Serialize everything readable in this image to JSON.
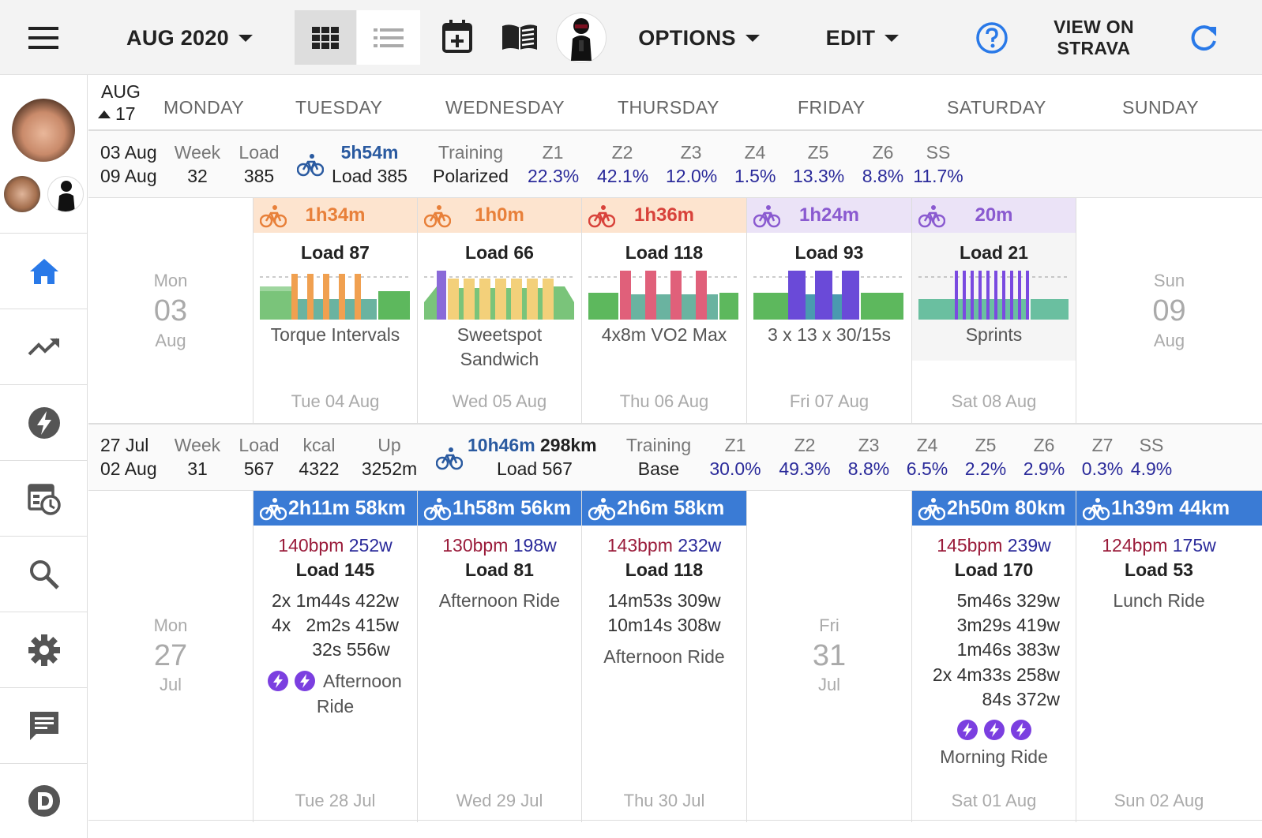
{
  "toolbar": {
    "month": "AUG 2020",
    "options": "OPTIONS",
    "edit": "EDIT",
    "view_on_line1": "VIEW ON",
    "view_on_line2": "STRAVA"
  },
  "header": {
    "month": "AUG",
    "day": "17",
    "days": [
      "MONDAY",
      "TUESDAY",
      "WEDNESDAY",
      "THURSDAY",
      "FRIDAY",
      "SATURDAY",
      "SUNDAY"
    ]
  },
  "week1": {
    "start": "03 Aug",
    "end": "09 Aug",
    "week_label": "Week",
    "week": "32",
    "load_label": "Load",
    "load": "385",
    "duration": "5h54m",
    "total_load": "Load 385",
    "training_label": "Training",
    "training": "Polarized",
    "zones": [
      {
        "name": "Z1",
        "value": "22.3%"
      },
      {
        "name": "Z2",
        "value": "42.1%"
      },
      {
        "name": "Z3",
        "value": "12.0%"
      },
      {
        "name": "Z4",
        "value": "1.5%"
      },
      {
        "name": "Z5",
        "value": "13.3%"
      },
      {
        "name": "Z6",
        "value": "8.8%"
      },
      {
        "name": "SS",
        "value": "11.7%"
      }
    ],
    "mon": {
      "dow": "Mon",
      "num": "03",
      "mon": "Aug"
    },
    "sun": {
      "dow": "Sun",
      "num": "09",
      "mon": "Aug"
    },
    "plans": [
      {
        "duration": "1h34m",
        "load": "Load 87",
        "name1": "Torque Intervals",
        "name2": "",
        "date": "Tue 04 Aug"
      },
      {
        "duration": "1h0m",
        "load": "Load 66",
        "name1": "Sweetspot",
        "name2": "Sandwich",
        "date": "Wed 05 Aug"
      },
      {
        "duration": "1h36m",
        "load": "Load 118",
        "name1": "4x8m VO2 Max",
        "name2": "",
        "date": "Thu 06 Aug"
      },
      {
        "duration": "1h24m",
        "load": "Load 93",
        "name1": "3 x 13 x 30/15s",
        "name2": "",
        "date": "Fri 07 Aug"
      },
      {
        "duration": "20m",
        "load": "Load 21",
        "name1": "Sprints",
        "name2": "",
        "date": "Sat 08 Aug"
      }
    ]
  },
  "week2": {
    "start": "27 Jul",
    "end": "02 Aug",
    "week_label": "Week",
    "week": "31",
    "load_label": "Load",
    "load": "567",
    "kcal_label": "kcal",
    "kcal": "4322",
    "up_label": "Up",
    "up": "3252m",
    "duration": "10h46m",
    "distance": "298km",
    "total_load": "Load 567",
    "training_label": "Training",
    "training": "Base",
    "zones": [
      {
        "name": "Z1",
        "value": "30.0%"
      },
      {
        "name": "Z2",
        "value": "49.3%"
      },
      {
        "name": "Z3",
        "value": "8.8%"
      },
      {
        "name": "Z4",
        "value": "6.5%"
      },
      {
        "name": "Z5",
        "value": "2.2%"
      },
      {
        "name": "Z6",
        "value": "2.9%"
      },
      {
        "name": "Z7",
        "value": "0.3%"
      },
      {
        "name": "SS",
        "value": "4.9%"
      }
    ],
    "mon": {
      "dow": "Mon",
      "num": "27",
      "mon": "Jul"
    },
    "fri": {
      "dow": "Fri",
      "num": "31",
      "mon": "Jul"
    },
    "acts": {
      "tue": {
        "title": "2h11m 58km",
        "bpm": "140bpm",
        "watt": "252w",
        "load": "Load 145",
        "l1": "2x 1m44s 422w",
        "l2": "4x   2m2s 415w",
        "l3": "32s 556w",
        "name1": "Afternoon",
        "name2": "Ride",
        "date": "Tue 28 Jul"
      },
      "wed": {
        "title": "1h58m 56km",
        "bpm": "130bpm",
        "watt": "198w",
        "load": "Load 81",
        "name": "Afternoon Ride",
        "date": "Wed 29 Jul"
      },
      "thu": {
        "title": "2h6m 58km",
        "bpm": "143bpm",
        "watt": "232w",
        "load": "Load 118",
        "l1": "14m53s 309w",
        "l2": "10m14s 308w",
        "name": "Afternoon Ride",
        "date": "Thu 30 Jul"
      },
      "sat": {
        "title": "2h50m 80km",
        "bpm": "145bpm",
        "watt": "239w",
        "load": "Load 170",
        "l1": "5m46s 329w",
        "l2": "3m29s 419w",
        "l3": "1m46s 383w",
        "l4": "2x 4m33s 258w",
        "l5": "84s 372w",
        "name": "Morning Ride",
        "date": "Sat 01 Aug"
      },
      "sun": {
        "title": "1h39m 44km",
        "bpm": "124bpm",
        "watt": "175w",
        "load": "Load 53",
        "name": "Lunch Ride",
        "date": "Sun 02 Aug"
      }
    }
  },
  "colors": {
    "accent": "#3a7bd5",
    "zone": "#2a2a9a",
    "hr": "#9a1b3a",
    "strava": "#7b3fe0"
  },
  "icons": [
    "menu-icon",
    "grid-view-icon",
    "list-view-icon",
    "calendar-add-icon",
    "book-icon",
    "help-icon",
    "refresh-icon",
    "home-icon",
    "trend-icon",
    "bolt-icon",
    "schedule-icon",
    "search-icon",
    "gear-icon",
    "chat-icon",
    "d-logo-icon",
    "bike-icon"
  ]
}
